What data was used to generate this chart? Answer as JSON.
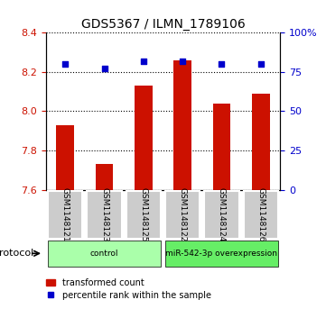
{
  "title": "GDS5367 / ILMN_1789106",
  "samples": [
    "GSM1148121",
    "GSM1148123",
    "GSM1148125",
    "GSM1148122",
    "GSM1148124",
    "GSM1148126"
  ],
  "bar_values": [
    7.93,
    7.73,
    8.13,
    8.26,
    8.04,
    8.09
  ],
  "dot_values_pct": [
    80,
    77,
    82,
    82,
    80,
    80
  ],
  "bar_bottom": 7.6,
  "ylim": [
    7.6,
    8.4
  ],
  "yticks_left": [
    7.6,
    7.8,
    8.0,
    8.2,
    8.4
  ],
  "yticks_right": [
    0,
    25,
    50,
    75,
    100
  ],
  "bar_color": "#cc1100",
  "dot_color": "#0000cc",
  "groups": [
    {
      "label": "control",
      "samples": [
        0,
        1,
        2
      ],
      "color": "#aaffaa"
    },
    {
      "label": "miR-542-3p overexpression",
      "samples": [
        3,
        4,
        5
      ],
      "color": "#66ee66"
    }
  ],
  "protocol_label": "protocol",
  "legend_bar_label": "transformed count",
  "legend_dot_label": "percentile rank within the sample",
  "grid_color": "#000000",
  "background_color": "#ffffff",
  "plot_bg": "#ffffff",
  "sample_box_color": "#cccccc",
  "left_tick_color": "#cc1100",
  "right_tick_color": "#0000cc"
}
